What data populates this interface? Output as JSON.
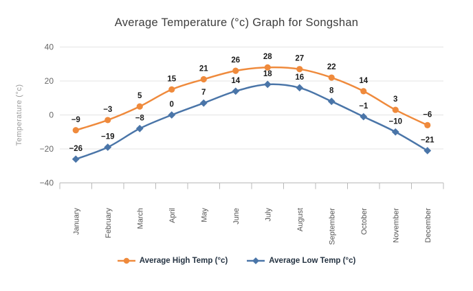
{
  "title": "Average Temperature (°c) Graph for Songshan",
  "chart_data": {
    "type": "line",
    "title": "Average Temperature (°c) Graph for Songshan",
    "categories": [
      "January",
      "February",
      "March",
      "April",
      "May",
      "June",
      "July",
      "August",
      "September",
      "October",
      "November",
      "December"
    ],
    "series": [
      {
        "name": "Average High Temp (°c)",
        "color": "#EF8A3C",
        "marker": "circle",
        "values": [
          -9,
          -3,
          5,
          15,
          21,
          26,
          28,
          27,
          22,
          14,
          3,
          -6
        ]
      },
      {
        "name": "Average Low Temp (°c)",
        "color": "#4A75A8",
        "marker": "diamond",
        "values": [
          -26,
          -19,
          -8,
          0,
          7,
          14,
          18,
          16,
          8,
          -1,
          -10,
          -21
        ]
      }
    ],
    "xlabel": "",
    "ylabel": "Temperature (°c)",
    "ylim": [
      -40,
      40
    ],
    "yticks": [
      40,
      20,
      0,
      -20,
      -40
    ],
    "grid": true,
    "data_labels": true,
    "legend_position": "bottom",
    "line_style": "smooth"
  },
  "colors": {
    "high": "#EF8A3C",
    "low": "#4A75A8",
    "grid": "#e3e3e3",
    "axis": "#b8b8b8",
    "title_text": "#3c3c3c",
    "tick_text": "#666666",
    "month_text": "#555555",
    "axis_title_text": "#9a9a9a",
    "label_text": "#1a1a1a",
    "legend_text": "#253342"
  }
}
